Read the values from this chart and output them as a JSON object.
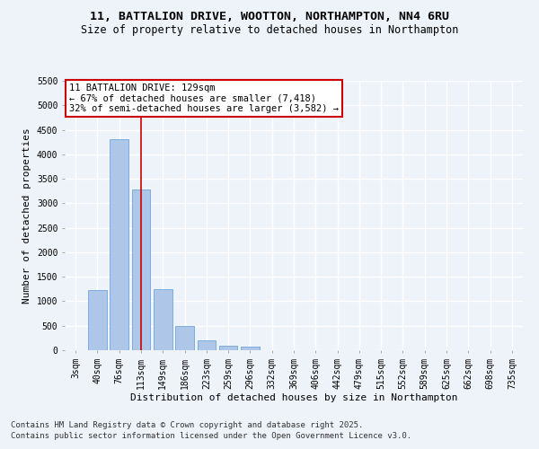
{
  "title_line1": "11, BATTALION DRIVE, WOOTTON, NORTHAMPTON, NN4 6RU",
  "title_line2": "Size of property relative to detached houses in Northampton",
  "xlabel": "Distribution of detached houses by size in Northampton",
  "ylabel": "Number of detached properties",
  "bar_color": "#aec6e8",
  "bar_edge_color": "#5b9bd5",
  "categories": [
    "3sqm",
    "40sqm",
    "76sqm",
    "113sqm",
    "149sqm",
    "186sqm",
    "223sqm",
    "259sqm",
    "296sqm",
    "332sqm",
    "369sqm",
    "406sqm",
    "442sqm",
    "479sqm",
    "515sqm",
    "552sqm",
    "589sqm",
    "625sqm",
    "662sqm",
    "698sqm",
    "735sqm"
  ],
  "values": [
    0,
    1220,
    4300,
    3280,
    1250,
    490,
    200,
    100,
    65,
    0,
    0,
    0,
    0,
    0,
    0,
    0,
    0,
    0,
    0,
    0,
    0
  ],
  "ylim": [
    0,
    5500
  ],
  "yticks": [
    0,
    500,
    1000,
    1500,
    2000,
    2500,
    3000,
    3500,
    4000,
    4500,
    5000,
    5500
  ],
  "vline_x": 3,
  "vline_color": "#cc0000",
  "annotation_text": "11 BATTALION DRIVE: 129sqm\n← 67% of detached houses are smaller (7,418)\n32% of semi-detached houses are larger (3,582) →",
  "annotation_box_color": "#ffffff",
  "annotation_box_edge": "#cc0000",
  "footnote1": "Contains HM Land Registry data © Crown copyright and database right 2025.",
  "footnote2": "Contains public sector information licensed under the Open Government Licence v3.0.",
  "background_color": "#eef2f9",
  "grid_color": "#ffffff",
  "title_fontsize": 9.5,
  "subtitle_fontsize": 8.5,
  "axis_label_fontsize": 8,
  "tick_fontsize": 7,
  "annotation_fontsize": 7.5,
  "footnote_fontsize": 6.5
}
